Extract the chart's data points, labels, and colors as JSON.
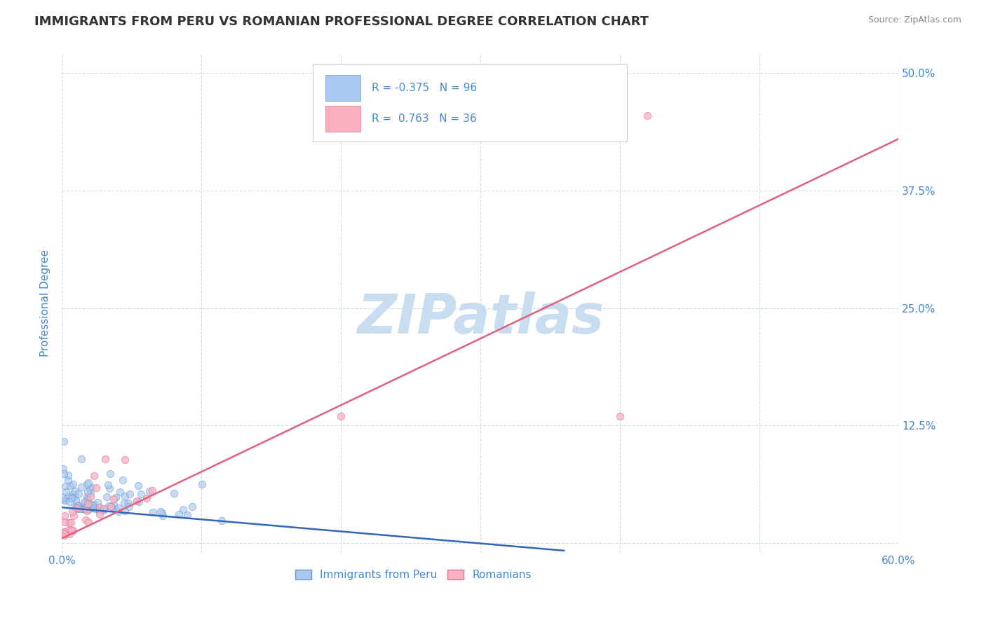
{
  "title": "IMMIGRANTS FROM PERU VS ROMANIAN PROFESSIONAL DEGREE CORRELATION CHART",
  "source_text": "Source: ZipAtlas.com",
  "ylabel": "Professional Degree",
  "xlim": [
    0.0,
    0.6
  ],
  "ylim": [
    -0.01,
    0.52
  ],
  "x_ticks": [
    0.0,
    0.1,
    0.2,
    0.3,
    0.4,
    0.5,
    0.6
  ],
  "x_tick_labels": [
    "0.0%",
    "",
    "",
    "",
    "",
    "",
    "60.0%"
  ],
  "y_ticks": [
    0.0,
    0.125,
    0.25,
    0.375,
    0.5
  ],
  "y_tick_labels_right": [
    "",
    "12.5%",
    "25.0%",
    "37.5%",
    "50.0%"
  ],
  "peru_color": "#aac8f0",
  "peru_edge_color": "#6699cc",
  "romania_color": "#f8b0c0",
  "romania_edge_color": "#dd7799",
  "peru_R": -0.375,
  "peru_N": 96,
  "romania_R": 0.763,
  "romania_N": 36,
  "peru_line_color": "#3366bb",
  "romania_line_color": "#e06080",
  "watermark": "ZIPatlas",
  "watermark_color": "#c8ddf0",
  "legend_peru_label": "Immigrants from Peru",
  "legend_romania_label": "Romanians",
  "title_color": "#333333",
  "source_color": "#888888",
  "tick_label_color": "#4488cc",
  "grid_color": "#ccddee",
  "background_color": "#ffffff",
  "box_color": "#ffffff",
  "box_edge_color": "#cccccc",
  "peru_line_x0": 0.0,
  "peru_line_y0": 0.038,
  "peru_line_x1": 0.36,
  "peru_line_y1": -0.008,
  "romania_line_x0": 0.0,
  "romania_line_y0": 0.005,
  "romania_line_x1": 0.6,
  "romania_line_y1": 0.43
}
